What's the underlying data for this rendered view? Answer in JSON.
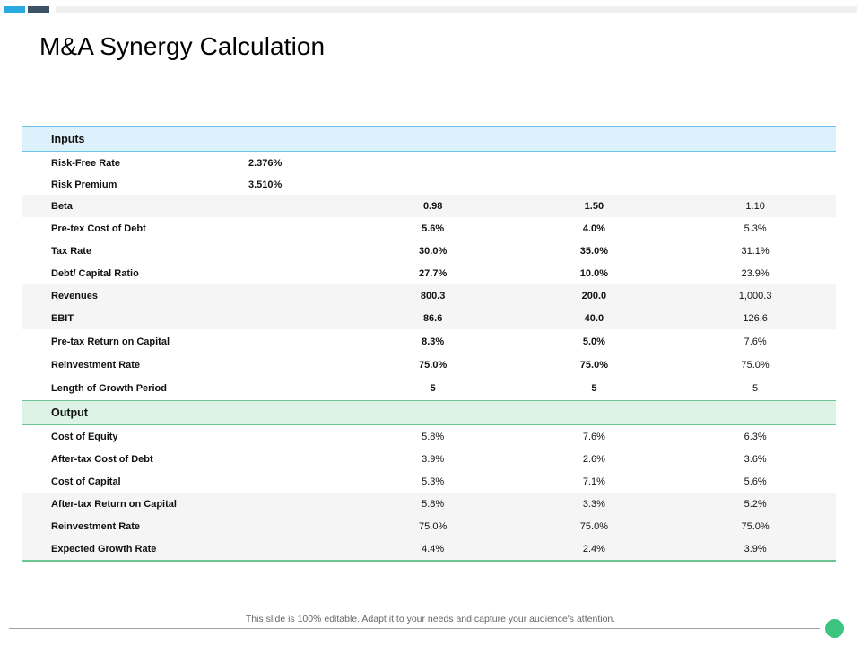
{
  "title": "M&A Synergy Calculation",
  "inputs_label": "Inputs",
  "output_label": "Output",
  "risk_free": {
    "label": "Risk-Free Rate",
    "value": "2.376%"
  },
  "risk_premium": {
    "label": "Risk Premium",
    "value": "3.510%"
  },
  "input_rows": [
    {
      "label": "Beta",
      "v1": "0.98",
      "v2": "1.50",
      "v3": "1.10"
    },
    {
      "label": "Pre-tex Cost of Debt",
      "v1": "5.6%",
      "v2": "4.0%",
      "v3": "5.3%"
    },
    {
      "label": "Tax Rate",
      "v1": "30.0%",
      "v2": "35.0%",
      "v3": "31.1%"
    },
    {
      "label": "Debt/ Capital Ratio",
      "v1": "27.7%",
      "v2": "10.0%",
      "v3": "23.9%"
    },
    {
      "label": "Revenues",
      "v1": "800.3",
      "v2": "200.0",
      "v3": "1,000.3"
    },
    {
      "label": "EBIT",
      "v1": "86.6",
      "v2": "40.0",
      "v3": "126.6"
    },
    {
      "label": "Pre-tax Return on Capital",
      "v1": "8.3%",
      "v2": "5.0%",
      "v3": "7.6%"
    },
    {
      "label": "Reinvestment Rate",
      "v1": "75.0%",
      "v2": "75.0%",
      "v3": "75.0%"
    },
    {
      "label": "Length of Growth Period",
      "v1": "5",
      "v2": "5",
      "v3": "5"
    }
  ],
  "output_rows": [
    {
      "label": "Cost of Equity",
      "v1": "5.8%",
      "v2": "7.6%",
      "v3": "6.3%"
    },
    {
      "label": "After-tax Cost of Debt",
      "v1": "3.9%",
      "v2": "2.6%",
      "v3": "3.6%"
    },
    {
      "label": "Cost of Capital",
      "v1": "5.3%",
      "v2": "7.1%",
      "v3": "5.6%"
    },
    {
      "label": "After-tax Return on Capital",
      "v1": "5.8%",
      "v2": "3.3%",
      "v3": "5.2%"
    },
    {
      "label": "Reinvestment Rate",
      "v1": "75.0%",
      "v2": "75.0%",
      "v3": "75.0%"
    },
    {
      "label": "Expected Growth Rate",
      "v1": "4.4%",
      "v2": "2.4%",
      "v3": "3.9%"
    }
  ],
  "footer": "This slide is 100% editable. Adapt it to your needs and capture your audience's attention.",
  "colors": {
    "accent_blue": "#29abe2",
    "accent_navy": "#3d5266",
    "accent_green": "#3cc480"
  }
}
